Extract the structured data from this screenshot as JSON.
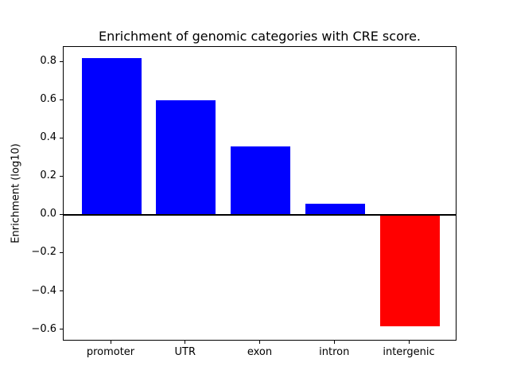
{
  "chart_data": {
    "type": "bar",
    "title": "Enrichment of genomic categories with CRE score.",
    "ylabel": "Enrichment (log10)",
    "xlabel": "",
    "categories": [
      "promoter",
      "UTR",
      "exon",
      "intron",
      "intergenic"
    ],
    "values": [
      0.82,
      0.6,
      0.36,
      0.06,
      -0.58
    ],
    "bar_colors": [
      "#0000ff",
      "#0000ff",
      "#0000ff",
      "#0000ff",
      "#ff0000"
    ],
    "positive_color": "#0000ff",
    "negative_color": "#ff0000",
    "bar_width_fraction": 0.8,
    "xlim": [
      -0.64,
      4.64
    ],
    "ylim": [
      -0.66,
      0.88
    ],
    "ytick_values": [
      0.8,
      0.6,
      0.4,
      0.2,
      0.0,
      -0.2,
      -0.4,
      -0.6
    ],
    "ytick_labels": [
      "0.8",
      "0.6",
      "0.4",
      "0.2",
      "0.0",
      "−0.2",
      "−0.4",
      "−0.6"
    ],
    "grid": false,
    "legend": null,
    "zero_line": true,
    "axis_color": "#000000",
    "background_color": "#ffffff"
  }
}
